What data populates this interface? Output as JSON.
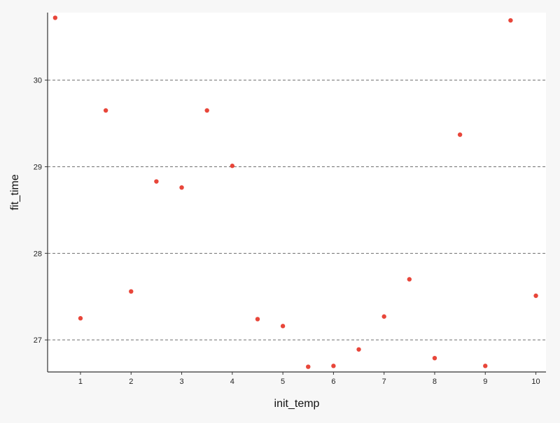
{
  "chart_data": {
    "type": "scatter",
    "title": "",
    "xlabel": "init_temp",
    "ylabel": "fit_time",
    "xlim": [
      0.35,
      10.2
    ],
    "ylim": [
      26.63,
      30.78
    ],
    "x_ticks": [
      1,
      2,
      3,
      4,
      5,
      6,
      7,
      8,
      9,
      10
    ],
    "x_tick_labels": [
      "1",
      "2",
      "3",
      "4",
      "5",
      "6",
      "7",
      "8",
      "9",
      "10"
    ],
    "y_ticks": [
      27,
      28,
      29,
      30
    ],
    "y_tick_labels": [
      "27",
      "28",
      "29",
      "30"
    ],
    "grid": "horizontal dashed",
    "point_color": "#e8463a",
    "series": [
      {
        "x": [
          0.5,
          1.0,
          1.5,
          2.0,
          2.5,
          3.0,
          3.5,
          4.0,
          4.5,
          5.0,
          5.5,
          6.0,
          6.5,
          7.0,
          7.5,
          8.0,
          8.5,
          9.0,
          9.5,
          10.0
        ],
        "y": [
          30.72,
          27.25,
          29.65,
          27.56,
          28.83,
          28.76,
          29.65,
          29.01,
          27.24,
          27.16,
          26.69,
          26.7,
          26.89,
          27.27,
          27.7,
          26.79,
          29.37,
          26.7,
          30.69,
          27.51
        ]
      }
    ]
  }
}
